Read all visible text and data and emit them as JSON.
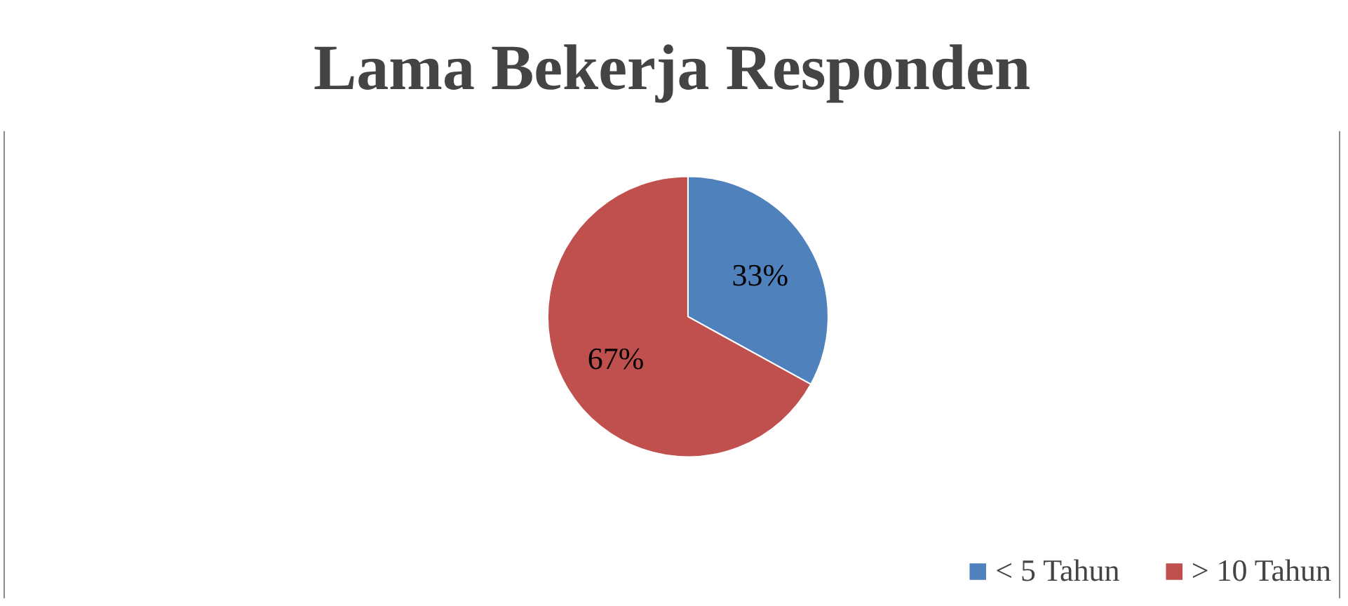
{
  "chart_data": {
    "type": "pie",
    "title": "Lama Bekerja Responden",
    "categories": [
      "< 5 Tahun",
      "> 10 Tahun"
    ],
    "values": [
      33,
      67
    ],
    "colors": [
      "#4f81bd",
      "#c0504d"
    ],
    "value_labels": [
      "33%",
      "67%"
    ],
    "legend": "bottom right"
  }
}
